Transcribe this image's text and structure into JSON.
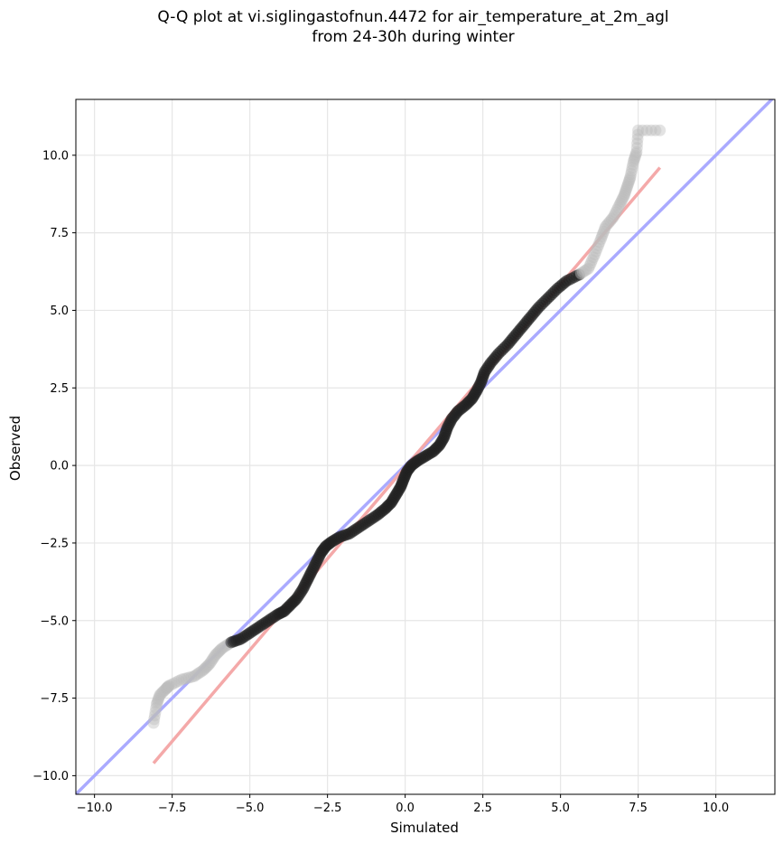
{
  "chart_data": {
    "type": "scatter",
    "title_line1": "Q-Q plot at vi.siglingastofnun.4472 for air_temperature_at_2m_agl",
    "title_line2": "from 24-30h during winter",
    "xlabel": "Simulated",
    "ylabel": "Observed",
    "xlim": [
      -10.6,
      11.9
    ],
    "ylim": [
      -10.6,
      11.8
    ],
    "xticks": [
      -10.0,
      -7.5,
      -5.0,
      -2.5,
      0.0,
      2.5,
      5.0,
      7.5,
      10.0
    ],
    "yticks": [
      -10.0,
      -7.5,
      -5.0,
      -2.5,
      0.0,
      2.5,
      5.0,
      7.5,
      10.0
    ],
    "xtick_labels": [
      "−10.0",
      "−7.5",
      "−5.0",
      "−2.5",
      "0.0",
      "2.5",
      "5.0",
      "7.5",
      "10.0"
    ],
    "ytick_labels": [
      "−10.0",
      "−7.5",
      "−5.0",
      "−2.5",
      "0.0",
      "2.5",
      "5.0",
      "7.5",
      "10.0"
    ],
    "grid": true,
    "reference_lines": [
      {
        "color": "#aaaaff",
        "points": [
          [
            -10.6,
            -10.6
          ],
          [
            11.9,
            11.9
          ]
        ]
      },
      {
        "color": "#f4a9a9",
        "points": [
          [
            -8.1,
            -9.6
          ],
          [
            8.2,
            9.6
          ]
        ]
      }
    ],
    "quantile_points": [
      [
        -8.1,
        -8.3
      ],
      [
        -8.0,
        -7.7
      ],
      [
        -7.9,
        -7.4
      ],
      [
        -7.7,
        -7.2
      ],
      [
        -7.6,
        -7.1
      ],
      [
        -7.2,
        -6.9
      ],
      [
        -6.8,
        -6.8
      ],
      [
        -6.5,
        -6.6
      ],
      [
        -6.3,
        -6.4
      ],
      [
        -6.1,
        -6.1
      ],
      [
        -5.9,
        -5.9
      ],
      [
        -5.6,
        -5.7
      ],
      [
        -5.3,
        -5.6
      ],
      [
        -5.0,
        -5.4
      ],
      [
        -4.7,
        -5.2
      ],
      [
        -4.4,
        -5.0
      ],
      [
        -4.1,
        -4.8
      ],
      [
        -3.9,
        -4.7
      ],
      [
        -3.7,
        -4.5
      ],
      [
        -3.5,
        -4.3
      ],
      [
        -3.3,
        -4.0
      ],
      [
        -3.15,
        -3.7
      ],
      [
        -3.0,
        -3.4
      ],
      [
        -2.85,
        -3.1
      ],
      [
        -2.7,
        -2.8
      ],
      [
        -2.55,
        -2.6
      ],
      [
        -2.35,
        -2.45
      ],
      [
        -2.1,
        -2.3
      ],
      [
        -1.8,
        -2.2
      ],
      [
        -1.5,
        -2.0
      ],
      [
        -1.2,
        -1.8
      ],
      [
        -0.9,
        -1.6
      ],
      [
        -0.65,
        -1.4
      ],
      [
        -0.45,
        -1.2
      ],
      [
        -0.3,
        -0.95
      ],
      [
        -0.15,
        -0.7
      ],
      [
        -0.05,
        -0.45
      ],
      [
        0.05,
        -0.2
      ],
      [
        0.2,
        0.0
      ],
      [
        0.4,
        0.15
      ],
      [
        0.65,
        0.3
      ],
      [
        0.9,
        0.45
      ],
      [
        1.1,
        0.65
      ],
      [
        1.25,
        0.9
      ],
      [
        1.35,
        1.2
      ],
      [
        1.5,
        1.5
      ],
      [
        1.7,
        1.75
      ],
      [
        1.95,
        1.95
      ],
      [
        2.15,
        2.15
      ],
      [
        2.3,
        2.4
      ],
      [
        2.45,
        2.7
      ],
      [
        2.55,
        3.0
      ],
      [
        2.75,
        3.3
      ],
      [
        3.0,
        3.6
      ],
      [
        3.3,
        3.9
      ],
      [
        3.55,
        4.2
      ],
      [
        3.8,
        4.5
      ],
      [
        4.05,
        4.8
      ],
      [
        4.3,
        5.1
      ],
      [
        4.6,
        5.4
      ],
      [
        4.9,
        5.7
      ],
      [
        5.2,
        5.95
      ],
      [
        5.6,
        6.15
      ],
      [
        5.9,
        6.35
      ],
      [
        6.1,
        6.8
      ],
      [
        6.3,
        7.3
      ],
      [
        6.45,
        7.7
      ],
      [
        6.7,
        8.0
      ],
      [
        6.9,
        8.4
      ],
      [
        7.05,
        8.7
      ],
      [
        7.15,
        9.0
      ],
      [
        7.25,
        9.3
      ],
      [
        7.35,
        9.8
      ],
      [
        7.45,
        10.1
      ],
      [
        7.5,
        10.8
      ],
      [
        8.2,
        10.8
      ]
    ]
  }
}
